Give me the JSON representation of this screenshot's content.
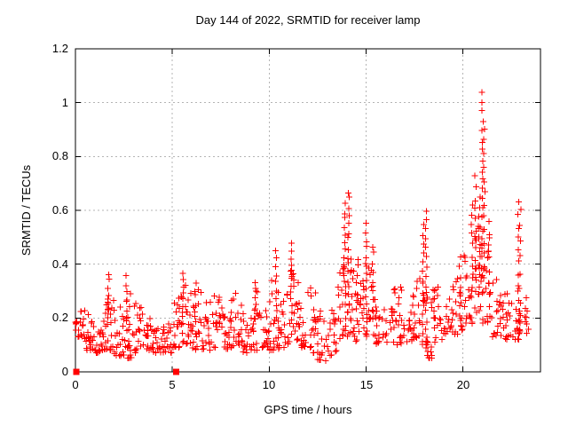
{
  "chart_data": {
    "type": "scatter",
    "title": "Day 144 of 2022, SRMTID for receiver lamp",
    "xlabel": "GPS time / hours",
    "ylabel": "SRMTID / TECUs",
    "xlim": [
      0,
      24
    ],
    "ylim": [
      0,
      1.2
    ],
    "x_ticks": [
      0,
      5,
      10,
      15,
      20
    ],
    "x_tick_labels": [
      "0",
      "5",
      "10",
      "15",
      "20"
    ],
    "y_ticks": [
      0,
      0.2,
      0.4,
      0.6,
      0.8,
      1,
      1.2
    ],
    "y_tick_labels": [
      "0",
      "0.2",
      "0.4",
      "0.6",
      "0.8",
      "1",
      "1.2"
    ],
    "grid": true,
    "legend": "none",
    "marker": "plus",
    "marker_color": "#ff0000",
    "grid_color": "#b4b4b4",
    "axis_color": "#000000",
    "background_color": "#ffffff",
    "max_value_approx": 1.04,
    "max_value_time_hours": 21.0,
    "zero_points": [
      [
        0.05,
        0
      ],
      [
        5.2,
        0
      ]
    ],
    "envelope_segments": {
      "note": "dense noisy band of + markers; [hour_center, y_min, y_max, n_points], half-width 0.25 h",
      "half_width": 0.25,
      "data": [
        [
          0.25,
          0.12,
          0.25,
          20
        ],
        [
          0.75,
          0.08,
          0.23,
          20
        ],
        [
          1.25,
          0.07,
          0.2,
          20
        ],
        [
          1.75,
          0.08,
          0.3,
          22
        ],
        [
          2.25,
          0.06,
          0.26,
          20
        ],
        [
          2.75,
          0.05,
          0.3,
          20
        ],
        [
          3.25,
          0.07,
          0.26,
          20
        ],
        [
          3.75,
          0.08,
          0.2,
          18
        ],
        [
          4.25,
          0.06,
          0.16,
          18
        ],
        [
          4.75,
          0.07,
          0.18,
          18
        ],
        [
          5.25,
          0.09,
          0.3,
          20
        ],
        [
          5.75,
          0.1,
          0.34,
          22
        ],
        [
          6.25,
          0.08,
          0.31,
          20
        ],
        [
          6.75,
          0.08,
          0.27,
          18
        ],
        [
          7.25,
          0.09,
          0.29,
          18
        ],
        [
          7.75,
          0.08,
          0.24,
          18
        ],
        [
          8.25,
          0.09,
          0.31,
          20
        ],
        [
          8.75,
          0.07,
          0.25,
          18
        ],
        [
          9.25,
          0.08,
          0.31,
          20
        ],
        [
          9.75,
          0.09,
          0.27,
          18
        ],
        [
          10.25,
          0.08,
          0.36,
          20
        ],
        [
          10.75,
          0.09,
          0.32,
          18
        ],
        [
          11.25,
          0.11,
          0.38,
          20
        ],
        [
          11.75,
          0.09,
          0.28,
          18
        ],
        [
          12.25,
          0.07,
          0.32,
          20
        ],
        [
          12.75,
          0.04,
          0.24,
          18
        ],
        [
          13.25,
          0.06,
          0.26,
          18
        ],
        [
          13.75,
          0.12,
          0.4,
          20
        ],
        [
          14.25,
          0.1,
          0.42,
          20
        ],
        [
          14.75,
          0.11,
          0.36,
          18
        ],
        [
          15.25,
          0.13,
          0.4,
          20
        ],
        [
          15.75,
          0.1,
          0.28,
          18
        ],
        [
          16.25,
          0.11,
          0.31,
          18
        ],
        [
          16.75,
          0.1,
          0.33,
          18
        ],
        [
          17.25,
          0.11,
          0.29,
          18
        ],
        [
          17.75,
          0.1,
          0.35,
          18
        ],
        [
          18.25,
          0.05,
          0.38,
          20
        ],
        [
          18.75,
          0.11,
          0.33,
          18
        ],
        [
          19.25,
          0.14,
          0.32,
          18
        ],
        [
          19.75,
          0.14,
          0.35,
          18
        ],
        [
          20.25,
          0.18,
          0.45,
          20
        ],
        [
          20.75,
          0.22,
          0.55,
          22
        ],
        [
          21.25,
          0.18,
          0.5,
          20
        ],
        [
          21.75,
          0.13,
          0.35,
          18
        ],
        [
          22.25,
          0.12,
          0.33,
          18
        ],
        [
          22.75,
          0.12,
          0.32,
          18
        ],
        [
          23.15,
          0.14,
          0.3,
          12
        ]
      ]
    },
    "spikes": {
      "note": "vertical strings of + markers; [hour, y_base, y_top, n_points]",
      "data": [
        [
          1.7,
          0.2,
          0.36,
          8
        ],
        [
          2.65,
          0.18,
          0.35,
          8
        ],
        [
          5.55,
          0.18,
          0.37,
          9
        ],
        [
          6.2,
          0.18,
          0.33,
          7
        ],
        [
          9.3,
          0.2,
          0.33,
          6
        ],
        [
          10.35,
          0.2,
          0.44,
          10
        ],
        [
          11.15,
          0.22,
          0.48,
          11
        ],
        [
          13.9,
          0.25,
          0.62,
          14
        ],
        [
          14.1,
          0.22,
          0.67,
          16
        ],
        [
          14.55,
          0.2,
          0.42,
          8
        ],
        [
          15.0,
          0.22,
          0.55,
          12
        ],
        [
          15.35,
          0.2,
          0.47,
          9
        ],
        [
          17.95,
          0.15,
          0.55,
          12
        ],
        [
          18.1,
          0.08,
          0.6,
          16
        ],
        [
          19.85,
          0.2,
          0.42,
          7
        ],
        [
          20.45,
          0.28,
          0.62,
          10
        ],
        [
          20.65,
          0.3,
          0.72,
          12
        ],
        [
          20.85,
          0.32,
          0.65,
          10
        ],
        [
          21.0,
          0.35,
          1.04,
          20
        ],
        [
          21.1,
          0.3,
          0.9,
          14
        ],
        [
          21.35,
          0.25,
          0.55,
          8
        ],
        [
          22.85,
          0.18,
          0.63,
          11
        ],
        [
          22.95,
          0.2,
          0.6,
          8
        ]
      ]
    },
    "seed": 144
  }
}
